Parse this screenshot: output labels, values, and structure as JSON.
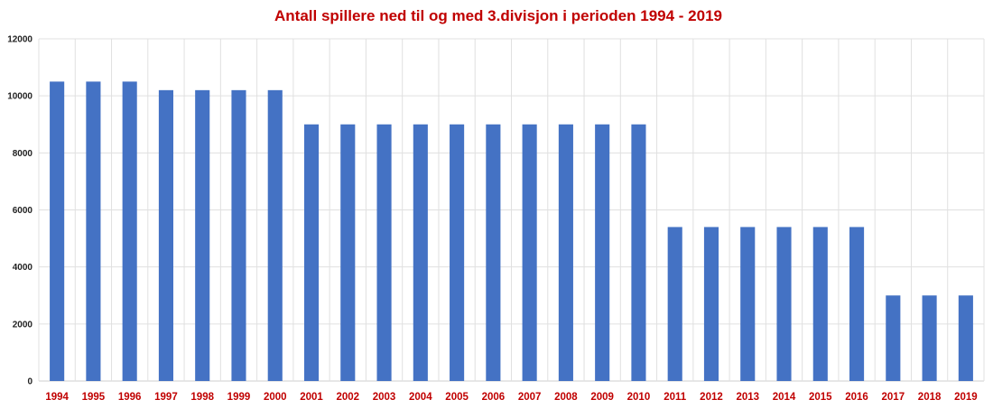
{
  "chart_data": {
    "type": "bar",
    "title": "Antall spillere ned til og med 3.divisjon i perioden 1994 - 2019",
    "xlabel": "",
    "ylabel": "",
    "categories": [
      "1994",
      "1995",
      "1996",
      "1997",
      "1998",
      "1999",
      "2000",
      "2001",
      "2002",
      "2003",
      "2004",
      "2005",
      "2006",
      "2007",
      "2008",
      "2009",
      "2010",
      "2011",
      "2012",
      "2013",
      "2014",
      "2015",
      "2016",
      "2017",
      "2018",
      "2019"
    ],
    "series": [
      {
        "values": [
          10500,
          10500,
          10500,
          10200,
          10200,
          10200,
          10200,
          9000,
          9000,
          9000,
          9000,
          9000,
          9000,
          9000,
          9000,
          9000,
          9000,
          5400,
          5400,
          5400,
          5400,
          5400,
          5400,
          3000,
          3000,
          3000
        ]
      }
    ],
    "ylim": [
      0,
      12000
    ],
    "yticks": [
      "0",
      "2000",
      "4000",
      "6000",
      "8000",
      "10000",
      "12000"
    ],
    "grid": true,
    "colors": {
      "bar": "#4472c4",
      "title": "#c00000",
      "xtick": "#c00000",
      "ytick": "#222222"
    }
  }
}
